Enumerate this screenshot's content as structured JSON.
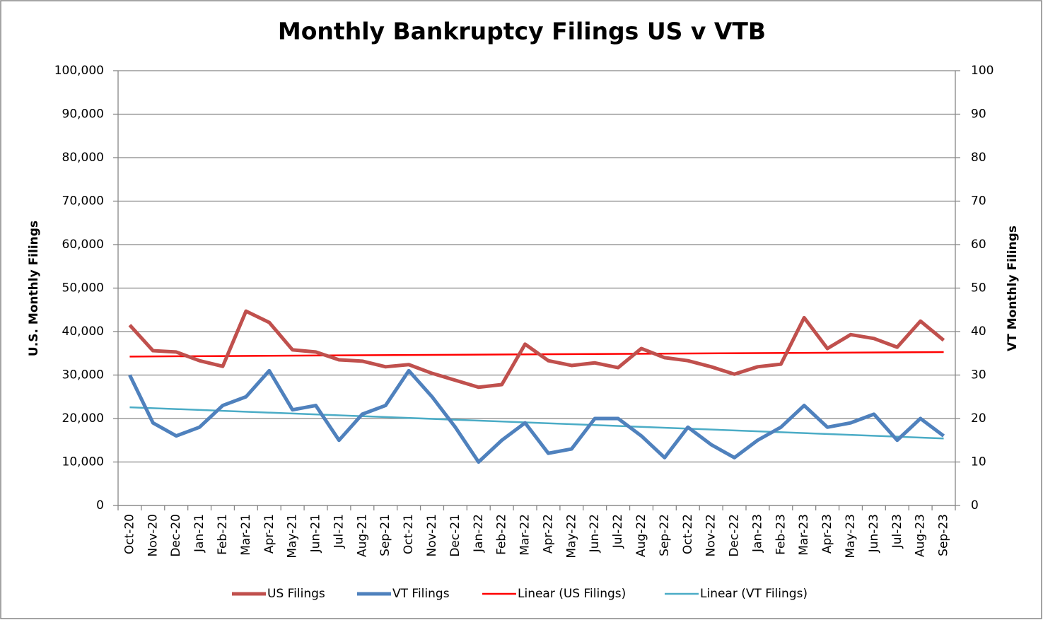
{
  "chart_data": {
    "type": "line",
    "title": "Monthly Bankruptcy Filings US v VTB",
    "ylabel": "U.S. Monthly Filings",
    "y2label": "VT Monthly Filings",
    "categories": [
      "Oct-20",
      "Nov-20",
      "Dec-20",
      "Jan-21",
      "Feb-21",
      "Mar-21",
      "Apr-21",
      "May-21",
      "Jun-21",
      "Jul-21",
      "Aug-21",
      "Sep-21",
      "Oct-21",
      "Nov-21",
      "Dec-21",
      "Jan-22",
      "Feb-22",
      "Mar-22",
      "Apr-22",
      "May-22",
      "Jun-22",
      "Jul-22",
      "Aug-22",
      "Sep-22",
      "Oct-22",
      "Nov-22",
      "Dec-22",
      "Jan-23",
      "Feb-23",
      "Mar-23",
      "Apr-23",
      "May-23",
      "Jun-23",
      "Jul-23",
      "Aug-23",
      "Sep-23"
    ],
    "series": [
      {
        "name": "US Filings",
        "color": "#c0504d",
        "axis": "y",
        "values": [
          41500,
          35600,
          35300,
          33300,
          32000,
          44700,
          42100,
          35800,
          35300,
          33500,
          33200,
          31900,
          32400,
          30400,
          28800,
          27200,
          27800,
          37100,
          33300,
          32200,
          32800,
          31700,
          36100,
          34000,
          33300,
          31900,
          30200,
          31900,
          32500,
          43200,
          36100,
          39300,
          38400,
          36400,
          42400,
          38000
        ],
        "trendline": {
          "name": "Linear (US Filings)",
          "color": "#ff0000"
        }
      },
      {
        "name": "VT Filings",
        "color": "#4f81bd",
        "axis": "y2",
        "values": [
          30,
          19,
          16,
          18,
          23,
          25,
          31,
          22,
          23,
          15,
          21,
          23,
          31,
          25,
          18,
          10,
          15,
          19,
          12,
          13,
          20,
          20,
          16,
          11,
          18,
          14,
          11,
          15,
          18,
          23,
          18,
          19,
          21,
          15,
          20,
          16
        ],
        "trendline": {
          "name": "Linear (VT Filings)",
          "color": "#4bacc6"
        }
      }
    ],
    "ylim": [
      0,
      100000
    ],
    "yticks": [
      0,
      {
        "value": 10000,
        "label": "10,000"
      },
      {
        "value": 20000,
        "label": "20,000"
      },
      {
        "value": 30000,
        "label": "30,000"
      },
      {
        "value": 40000,
        "label": "40,000"
      },
      {
        "value": 50000,
        "label": "50,000"
      },
      {
        "value": 60000,
        "label": "60,000"
      },
      {
        "value": 70000,
        "label": "70,000"
      },
      {
        "value": 80000,
        "label": "80,000"
      },
      {
        "value": 90000,
        "label": "90,000"
      },
      {
        "value": 100000,
        "label": "100,000"
      }
    ],
    "y2lim": [
      0,
      100
    ],
    "y2ticks": [
      0,
      10,
      20,
      30,
      40,
      50,
      60,
      70,
      80,
      90,
      100
    ],
    "grid": true,
    "legend": "bottom"
  }
}
